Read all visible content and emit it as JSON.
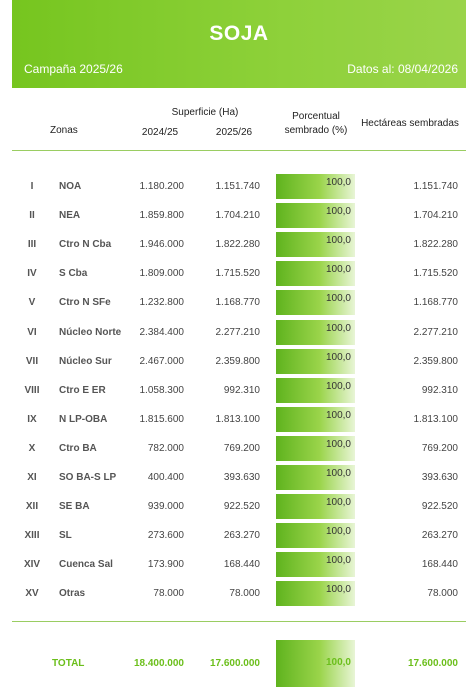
{
  "header": {
    "title": "SOJA",
    "campaign": "Campaña 2025/26",
    "date": "Datos al: 08/04/2026"
  },
  "columns": {
    "zones": "Zonas",
    "surface": "Superficie (Ha)",
    "year1": "2024/25",
    "year2": "2025/26",
    "percent": "Porcentual sembrado (%)",
    "hectares": "Hectáreas sembradas"
  },
  "rows": [
    {
      "num": "I",
      "zone": "NOA",
      "v1": "1.180.200",
      "v2": "1.151.740",
      "pct": "100,0",
      "hect": "1.151.740"
    },
    {
      "num": "II",
      "zone": "NEA",
      "v1": "1.859.800",
      "v2": "1.704.210",
      "pct": "100,0",
      "hect": "1.704.210"
    },
    {
      "num": "III",
      "zone": "Ctro N Cba",
      "v1": "1.946.000",
      "v2": "1.822.280",
      "pct": "100,0",
      "hect": "1.822.280"
    },
    {
      "num": "IV",
      "zone": "S Cba",
      "v1": "1.809.000",
      "v2": "1.715.520",
      "pct": "100,0",
      "hect": "1.715.520"
    },
    {
      "num": "V",
      "zone": "Ctro N SFe",
      "v1": "1.232.800",
      "v2": "1.168.770",
      "pct": "100,0",
      "hect": "1.168.770"
    },
    {
      "num": "VI",
      "zone": "Núcleo Norte",
      "v1": "2.384.400",
      "v2": "2.277.210",
      "pct": "100,0",
      "hect": "2.277.210"
    },
    {
      "num": "VII",
      "zone": "Núcleo Sur",
      "v1": "2.467.000",
      "v2": "2.359.800",
      "pct": "100,0",
      "hect": "2.359.800"
    },
    {
      "num": "VIII",
      "zone": "Ctro E ER",
      "v1": "1.058.300",
      "v2": "992.310",
      "pct": "100,0",
      "hect": "992.310"
    },
    {
      "num": "IX",
      "zone": "N LP-OBA",
      "v1": "1.815.600",
      "v2": "1.813.100",
      "pct": "100,0",
      "hect": "1.813.100"
    },
    {
      "num": "X",
      "zone": "Ctro BA",
      "v1": "782.000",
      "v2": "769.200",
      "pct": "100,0",
      "hect": "769.200"
    },
    {
      "num": "XI",
      "zone": "SO BA-S LP",
      "v1": "400.400",
      "v2": "393.630",
      "pct": "100,0",
      "hect": "393.630"
    },
    {
      "num": "XII",
      "zone": "SE BA",
      "v1": "939.000",
      "v2": "922.520",
      "pct": "100,0",
      "hect": "922.520"
    },
    {
      "num": "XIII",
      "zone": "SL",
      "v1": "273.600",
      "v2": "263.270",
      "pct": "100,0",
      "hect": "263.270"
    },
    {
      "num": "XIV",
      "zone": "Cuenca Sal",
      "v1": "173.900",
      "v2": "168.440",
      "pct": "100,0",
      "hect": "168.440"
    },
    {
      "num": "XV",
      "zone": "Otras",
      "v1": "78.000",
      "v2": "78.000",
      "pct": "100,0",
      "hect": "78.000"
    }
  ],
  "total": {
    "label": "TOTAL",
    "v1": "18.400.000",
    "v2": "17.600.000",
    "pct": "100,0",
    "hect": "17.600.000"
  }
}
